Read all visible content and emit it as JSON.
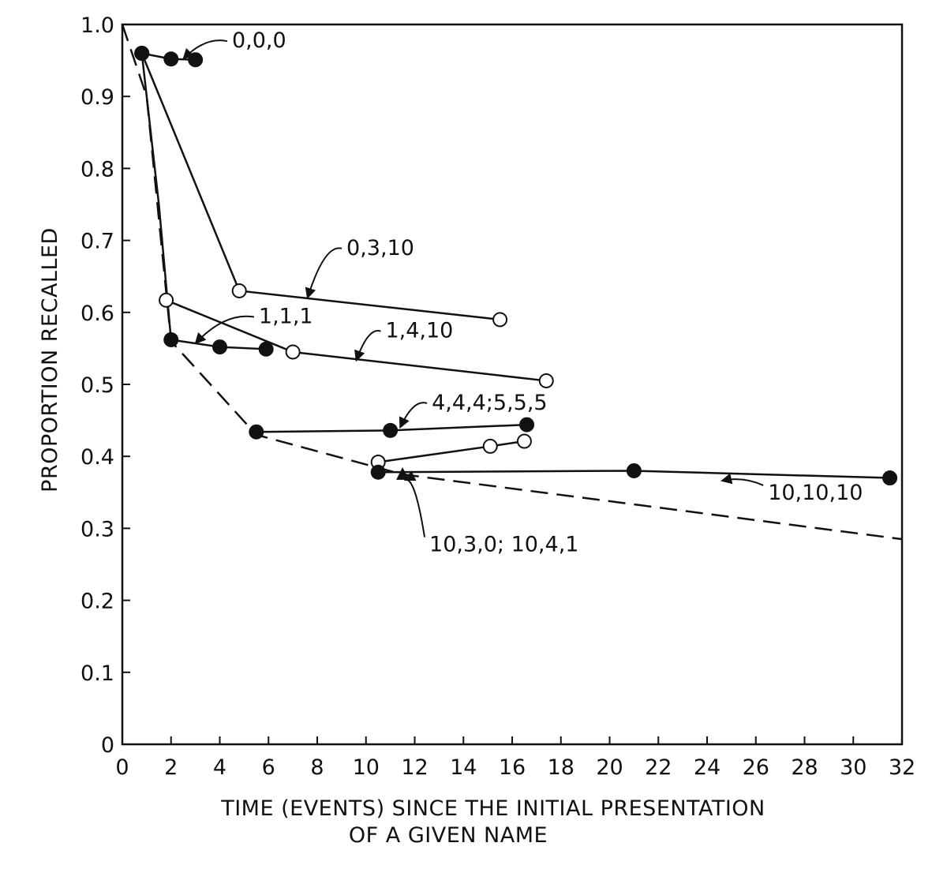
{
  "chart_data": {
    "type": "line",
    "title": "",
    "xlabel": [
      "TIME (EVENTS) SINCE THE INITIAL PRESENTATION",
      "OF A GIVEN NAME"
    ],
    "ylabel": "PROPORTION RECALLED",
    "xlim": [
      0,
      32
    ],
    "ylim": [
      0,
      1.0
    ],
    "x_ticks": [
      0,
      2,
      4,
      6,
      8,
      10,
      12,
      14,
      16,
      18,
      20,
      22,
      24,
      26,
      28,
      30,
      32
    ],
    "x_tick_labels": [
      "0",
      "2",
      "4",
      "6",
      "8",
      "10",
      "12",
      "14",
      "16",
      "18",
      "20",
      "22",
      "24",
      "26",
      "28",
      "30",
      "32"
    ],
    "y_ticks": [
      0,
      0.1,
      0.2,
      0.3,
      0.4,
      0.5,
      0.6,
      0.7,
      0.8,
      0.9,
      1.0
    ],
    "y_tick_labels": [
      "0",
      "0.1",
      "0.2",
      "0.3",
      "0.4",
      "0.5",
      "0.6",
      "0.7",
      "0.8",
      "0.9",
      "1.0"
    ],
    "grid": false,
    "dashed_curve": {
      "x": [
        0,
        1,
        2,
        5.5,
        11.5,
        32
      ],
      "y": [
        1.0,
        0.9,
        0.56,
        0.43,
        0.375,
        0.285
      ]
    },
    "series": [
      {
        "name": "0,0,0",
        "marker": "filled",
        "x": [
          0.8,
          2,
          3
        ],
        "y": [
          0.96,
          0.952,
          0.951
        ]
      },
      {
        "name": "0,3,10",
        "marker": "open",
        "x": [
          0.8,
          4.8,
          15.5
        ],
        "y": [
          0.96,
          0.63,
          0.59
        ]
      },
      {
        "name": "1,4,10",
        "marker": "open",
        "x": [
          1.8,
          7,
          17.4
        ],
        "y": [
          0.617,
          0.545,
          0.505
        ]
      },
      {
        "name": "1,1,1",
        "marker": "filled",
        "x": [
          0.8,
          1.5,
          2,
          4,
          5.9
        ],
        "y": [
          0.96,
          0.75,
          0.562,
          0.552,
          0.549
        ]
      },
      {
        "name": "4,4,4;5,5,5",
        "marker": "filled",
        "x": [
          5.5,
          11,
          16.6
        ],
        "y": [
          0.434,
          0.436,
          0.444
        ]
      },
      {
        "name": "",
        "marker": "open",
        "x": [
          10.5,
          15.1,
          16.5
        ],
        "y": [
          0.392,
          0.414,
          0.421
        ]
      },
      {
        "name": "10,10,10",
        "marker": "filled",
        "x": [
          10.5,
          21,
          31.5
        ],
        "y": [
          0.378,
          0.38,
          0.37
        ]
      },
      {
        "name": "",
        "marker": "filled-triangle",
        "x": [
          11.5
        ],
        "y": [
          0.374
        ]
      }
    ],
    "labels": [
      {
        "text": "0,0,0",
        "x": 4.5,
        "y": 0.968,
        "arrow_to": [
          2.5,
          0.952
        ]
      },
      {
        "text": "0,3,10",
        "x": 9.2,
        "y": 0.68,
        "arrow_to": [
          7.6,
          0.62
        ]
      },
      {
        "text": "1,1,1",
        "x": 5.6,
        "y": 0.585,
        "arrow_to": [
          3,
          0.557
        ]
      },
      {
        "text": "1,4,10",
        "x": 10.8,
        "y": 0.565,
        "arrow_to": [
          9.6,
          0.533
        ]
      },
      {
        "text": "4,4,4;5,5,5",
        "x": 12.7,
        "y": 0.465,
        "arrow_to": [
          11.4,
          0.44
        ]
      },
      {
        "text": "10,3,0; 10,4,1",
        "x": 12.6,
        "y": 0.268,
        "arrow_to": [
          11.6,
          0.367
        ]
      },
      {
        "text": "10,10,10",
        "x": 26.5,
        "y": 0.34,
        "arrow_to": [
          24.6,
          0.366
        ]
      }
    ]
  }
}
